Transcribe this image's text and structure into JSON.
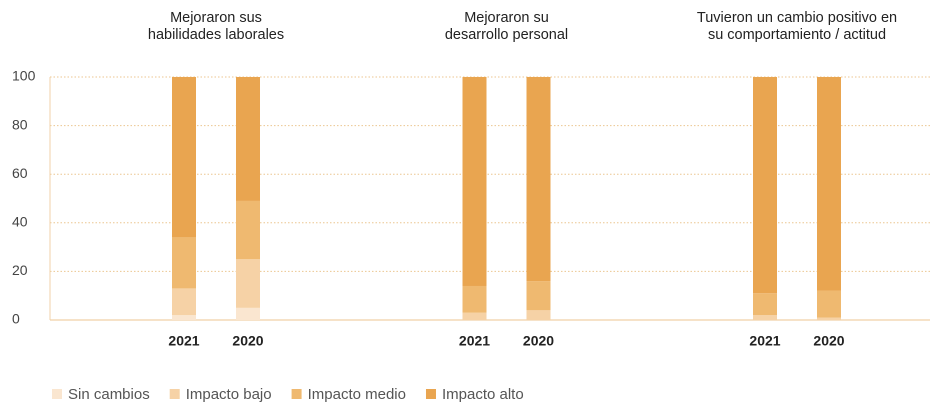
{
  "chart_data": {
    "type": "stacked_bar",
    "groups": [
      [
        "Mejoraron sus",
        "habilidades laborales"
      ],
      [
        "Mejoraron su",
        "desarrollo personal"
      ],
      [
        "Tuvieron un cambio positivo en",
        "su comportamiento / actitud"
      ]
    ],
    "categories": [
      "2021",
      "2020",
      "2021",
      "2020",
      "2021",
      "2020"
    ],
    "series": [
      {
        "name": "Sin cambios",
        "color": "#fae6d0",
        "values": [
          2,
          5,
          0,
          0,
          0,
          0
        ]
      },
      {
        "name": "Impacto bajo",
        "color": "#f6d2a6",
        "values": [
          11,
          20,
          3,
          4,
          2,
          1
        ]
      },
      {
        "name": "Impacto medio",
        "color": "#efb970",
        "values": [
          21,
          24,
          11,
          12,
          9,
          11
        ]
      },
      {
        "name": "Impacto alto",
        "color": "#e9a550",
        "values": [
          66,
          51,
          86,
          84,
          89,
          88
        ]
      }
    ],
    "ylim": [
      0,
      100
    ],
    "yticks": [
      0,
      20,
      40,
      60,
      80,
      100
    ],
    "grid": true
  }
}
